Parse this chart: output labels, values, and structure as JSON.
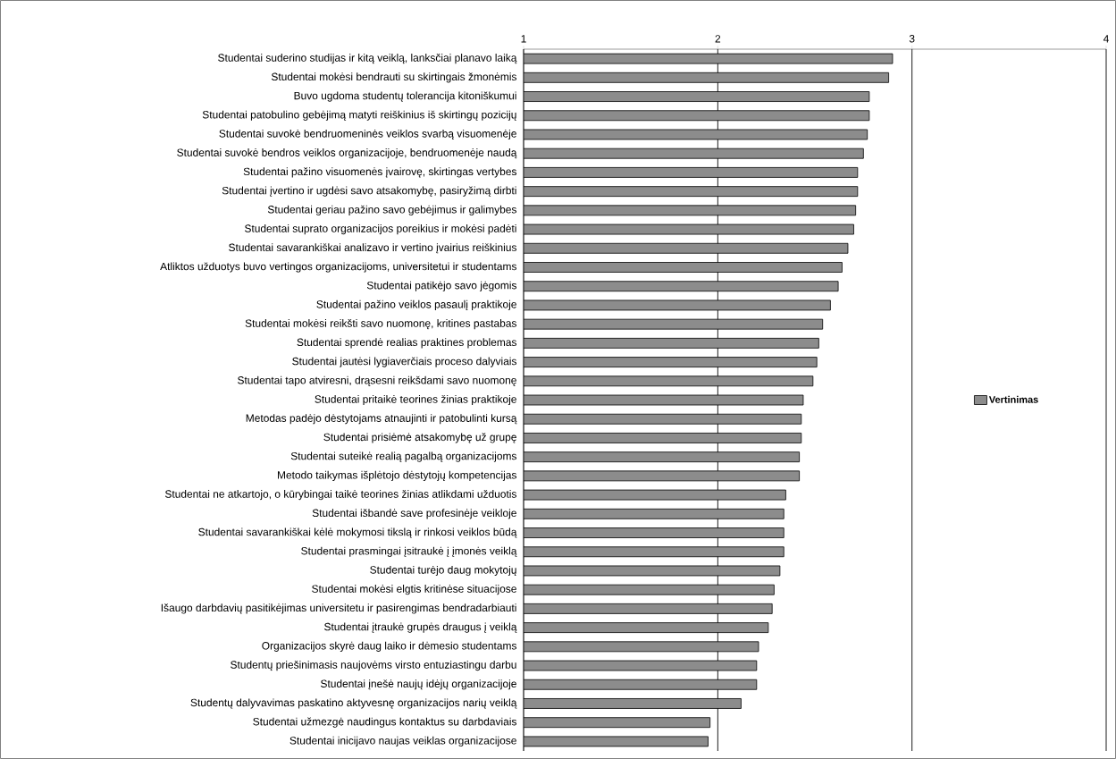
{
  "chart_data": {
    "type": "bar",
    "orientation": "horizontal",
    "categories": [
      "Studentai suderino studijas ir kitą veiklą, lanksčiai planavo laiką",
      "Studentai mokėsi bendrauti su skirtingais žmonėmis",
      "Buvo ugdoma studentų tolerancija kitoniškumui",
      "Studentai patobulino gebėjimą matyti reiškinius iš skirtingų pozicijų",
      "Studentai suvokė bendruomeninės veiklos svarbą visuomenėje",
      "Studentai suvokė bendros veiklos organizacijoje, bendruomenėje naudą",
      "Studentai pažino visuomenės įvairovę, skirtingas vertybes",
      "Studentai įvertino ir ugdėsi savo atsakomybę, pasiryžimą dirbti",
      "Studentai geriau pažino savo gebėjimus ir galimybes",
      "Studentai suprato organizacijos poreikius ir mokėsi padėti",
      "Studentai savarankiškai analizavo ir vertino įvairius reiškinius",
      "Atliktos užduotys buvo vertingos organizacijoms, universitetui ir studentams",
      "Studentai patikėjo savo jėgomis",
      "Studentai pažino veiklos pasaulį praktikoje",
      "Studentai mokėsi reikšti savo nuomonę, kritines pastabas",
      "Studentai sprendė realias praktines problemas",
      "Studentai jautėsi lygiaverčiais proceso dalyviais",
      "Studentai tapo atviresni, drąsesni reikšdami savo nuomonę",
      "Studentai pritaikė teorines žinias praktikoje",
      "Metodas padėjo dėstytojams atnaujinti ir patobulinti kursą",
      "Studentai prisiėmė atsakomybę už grupę",
      "Studentai suteikė realią pagalbą organizacijoms",
      "Metodo taikymas išplėtojo dėstytojų kompetencijas",
      "Studentai ne atkartojo, o kūrybingai taikė teorines žinias atlikdami užduotis",
      "Studentai išbandė save profesinėje veikloje",
      "Studentai savarankiškai kėlė mokymosi tikslą ir rinkosi veiklos būdą",
      "Studentai prasmingai įsitraukė į įmonės veiklą",
      "Studentai turėjo daug mokytojų",
      "Studentai mokėsi elgtis kritinėse situacijose",
      "Išaugo darbdavių pasitikėjimas universitetu ir pasirengimas bendradarbiauti",
      "Studentai įtraukė grupės draugus į veiklą",
      "Organizacijos skyrė daug laiko ir dėmesio studentams",
      "Studentų priešinimasis naujovėms virsto entuziastingu darbu",
      "Studentai įnešė naujų idėjų organizacijoje",
      "Studentų dalyvavimas paskatino aktyvesnę organizacijos narių veiklą",
      "Studentai užmezgė naudingus kontaktus su darbdaviais",
      "Studentai inicijavo naujas veiklas organizacijose"
    ],
    "series": [
      {
        "name": "Vertinimas",
        "color": "#8c8c8c",
        "values": [
          2.9,
          2.88,
          2.78,
          2.78,
          2.77,
          2.75,
          2.72,
          2.72,
          2.71,
          2.7,
          2.67,
          2.64,
          2.62,
          2.58,
          2.54,
          2.52,
          2.51,
          2.49,
          2.44,
          2.43,
          2.43,
          2.42,
          2.42,
          2.35,
          2.34,
          2.34,
          2.34,
          2.32,
          2.29,
          2.28,
          2.26,
          2.21,
          2.2,
          2.2,
          2.12,
          1.96,
          1.95
        ]
      }
    ],
    "xlim": [
      1,
      4
    ],
    "xticks": [
      1,
      2,
      3,
      4
    ],
    "grid": "x",
    "legend": "right"
  }
}
